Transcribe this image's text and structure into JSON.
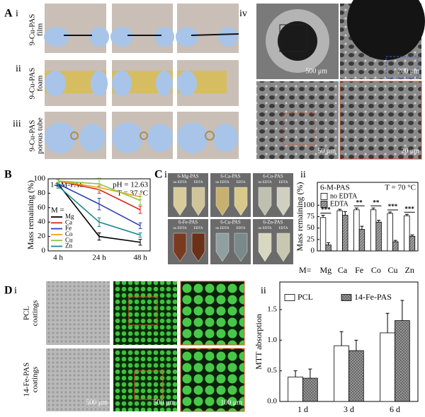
{
  "figure": {
    "a": {
      "label": "A",
      "sub": [
        "i",
        "ii",
        "iii",
        "iv"
      ],
      "rows": [
        [
          "9-Cu-PAS",
          "film"
        ],
        [
          "9-Cu-PAS",
          "foam"
        ],
        [
          "9-Cu-PAS",
          "porous tube"
        ]
      ],
      "scale_bars": [
        "500 μm",
        "200 μm",
        "50 μm",
        "20 μm"
      ]
    },
    "b": {
      "label": "B"
    },
    "c": {
      "label": "C",
      "sub": [
        "i",
        "ii"
      ],
      "vials": [
        "6-Mg-PAS",
        "6-Ca-PAS",
        "6-Co-PAS",
        "6-Fe-PAS",
        "6-Cu-PAS",
        "6-Zn-PAS"
      ],
      "conditions": [
        "no EDTA",
        "EDTA"
      ]
    },
    "d": {
      "label": "D",
      "sub": [
        "i",
        "ii"
      ],
      "rows": [
        [
          "PCL",
          "coatings"
        ],
        [
          "14-Fe-PAS",
          "coatings"
        ]
      ],
      "scale_bars": [
        "500 μm",
        "500 μm",
        "100 μm"
      ]
    }
  },
  "chart_data": [
    {
      "type": "line",
      "title": "14-M-PAS",
      "annotations": [
        "pH = 12.63",
        "T = 37 °C"
      ],
      "legend_title": "M =",
      "ylabel": "Mass remaining (%)",
      "categories": [
        "4 h",
        "24 h",
        "48 h"
      ],
      "ylim": [
        0,
        100
      ],
      "yticks": [
        0,
        20,
        40,
        60,
        80,
        100
      ],
      "series": [
        {
          "name": "Mg",
          "color": "#000000",
          "values": [
            93,
            20,
            12
          ],
          "errors": [
            2,
            5,
            4
          ]
        },
        {
          "name": "Ca",
          "color": "#d9261c",
          "values": [
            97,
            85,
            57
          ],
          "errors": [
            2,
            5,
            5
          ]
        },
        {
          "name": "Fe",
          "color": "#2a3fb0",
          "values": [
            93,
            65,
            35
          ],
          "errors": [
            2,
            8,
            4
          ]
        },
        {
          "name": "Co",
          "color": "#f0a020",
          "values": [
            97,
            88,
            75
          ],
          "errors": [
            2,
            5,
            4
          ]
        },
        {
          "name": "Cu",
          "color": "#8cc63f",
          "values": [
            97,
            93,
            70
          ],
          "errors": [
            2,
            8,
            6
          ]
        },
        {
          "name": "Zn",
          "color": "#1b8a8a",
          "values": [
            90,
            40,
            22
          ],
          "errors": [
            3,
            6,
            3
          ]
        }
      ]
    },
    {
      "type": "bar",
      "title": "6-M-PAS",
      "annotations": [
        "T = 70 °C"
      ],
      "ylabel": "Mass remaining (%)",
      "category_title": "M=",
      "categories": [
        "Mg",
        "Ca",
        "Fe",
        "Co",
        "Cu",
        "Zn"
      ],
      "ylim": [
        0,
        150
      ],
      "yticks": [
        0,
        25,
        50,
        75,
        100
      ],
      "series": [
        {
          "name": "no EDTA",
          "color": "#ffffff",
          "values": [
            73,
            88,
            90,
            90,
            82,
            77
          ],
          "errors": [
            5,
            3,
            4,
            4,
            3,
            3
          ]
        },
        {
          "name": "EDTA",
          "color": "#a0a0a0",
          "pattern": "diagonal",
          "values": [
            13,
            78,
            47,
            63,
            20,
            32
          ],
          "errors": [
            5,
            8,
            7,
            4,
            3,
            3
          ]
        }
      ],
      "significance": [
        "***",
        null,
        "**",
        "**",
        "***",
        "***"
      ]
    },
    {
      "type": "bar",
      "ylabel": "MTT absorption",
      "categories": [
        "1 d",
        "3 d",
        "6 d"
      ],
      "ylim": [
        0,
        1.95
      ],
      "yticks": [
        {
          "value": 0,
          "label": "0.0"
        },
        0.5,
        {
          "value": 1,
          "label": "1.0"
        },
        1.5
      ],
      "series": [
        {
          "name": "PCL",
          "color": "#ffffff",
          "values": [
            0.4,
            0.91,
            1.12
          ],
          "errors": [
            0.1,
            0.23,
            0.32
          ]
        },
        {
          "name": "14-Fe-PAS",
          "color": "#a0a0a0",
          "pattern": "cross",
          "values": [
            0.38,
            0.83,
            1.32
          ],
          "errors": [
            0.15,
            0.17,
            0.33
          ]
        }
      ]
    }
  ]
}
